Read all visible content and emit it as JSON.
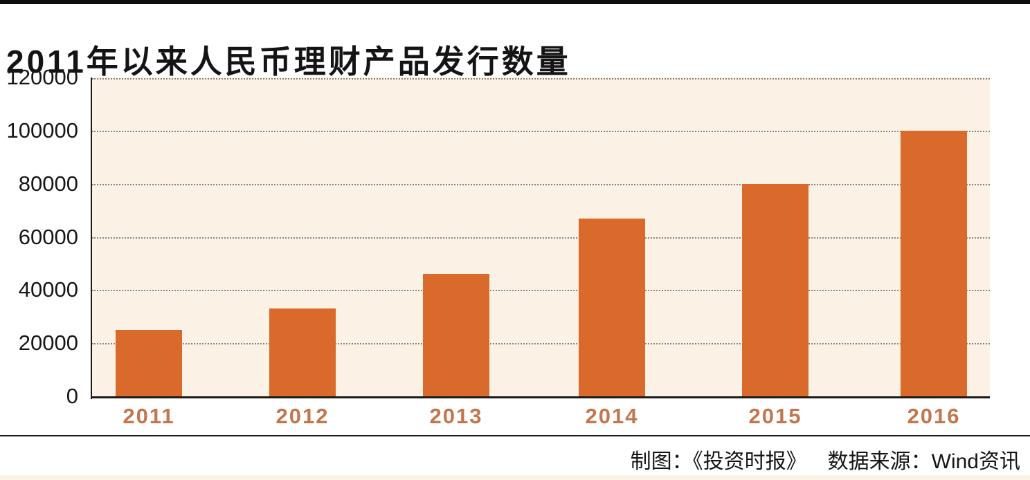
{
  "title": "2011年以来人民币理财产品发行数量",
  "credits": {
    "maker": "制图：《投资时报》",
    "source": "数据来源：Wind资讯"
  },
  "chart_data": {
    "type": "bar",
    "title": "2011年以来人民币理财产品发行数量",
    "categories": [
      "2011",
      "2012",
      "2013",
      "2014",
      "2015",
      "2016"
    ],
    "values": [
      25000,
      33000,
      46000,
      67000,
      80000,
      100000
    ],
    "xlabel": "",
    "ylabel": "",
    "ylim": [
      0,
      120000
    ],
    "yticks": [
      0,
      20000,
      40000,
      60000,
      80000,
      100000,
      120000
    ],
    "grid": "horizontal-dotted",
    "legend": "none",
    "bar_color": "#D96A2B",
    "plot_bg": "#FBF1E4",
    "gridline_color": "#8E8274",
    "x_tick_color": "#C4764E",
    "y_tick_color": "#161616",
    "axis_color": "#1a1a1a",
    "accent_top_bar_color": "#0e0e0e",
    "bottom_strip_color": "#FAF3E6"
  }
}
